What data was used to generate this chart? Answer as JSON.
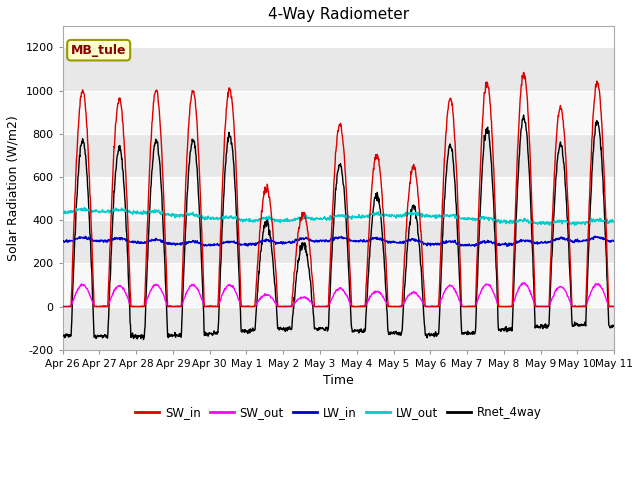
{
  "title": "4-Way Radiometer",
  "xlabel": "Time",
  "ylabel": "Solar Radiation (W/m2)",
  "ylim": [
    -200,
    1300
  ],
  "yticks": [
    -200,
    0,
    200,
    400,
    600,
    800,
    1000,
    1200
  ],
  "x_labels": [
    "Apr 26",
    "Apr 27",
    "Apr 28",
    "Apr 29",
    "Apr 30",
    "May 1",
    "May 2",
    "May 3",
    "May 4",
    "May 5",
    "May 6",
    "May 7",
    "May 8",
    "May 9",
    "May 10",
    "May 11"
  ],
  "station_label": "MB_tule",
  "colors": {
    "SW_in": "#dd0000",
    "SW_out": "#ff00ff",
    "LW_in": "#0000cc",
    "LW_out": "#00cccc",
    "Rnet_4way": "#000000"
  },
  "background_color": "#ffffff",
  "plot_bg_color": "#ffffff",
  "grid_color": "#ffffff",
  "band_color": "#e8e8e8",
  "n_days": 15,
  "sw_peaks": [
    1000,
    960,
    1000,
    1000,
    1010,
    550,
    430,
    840,
    700,
    650,
    960,
    1040,
    1080,
    920,
    1040
  ],
  "lw_in_base": 295,
  "lw_out_base": 390
}
